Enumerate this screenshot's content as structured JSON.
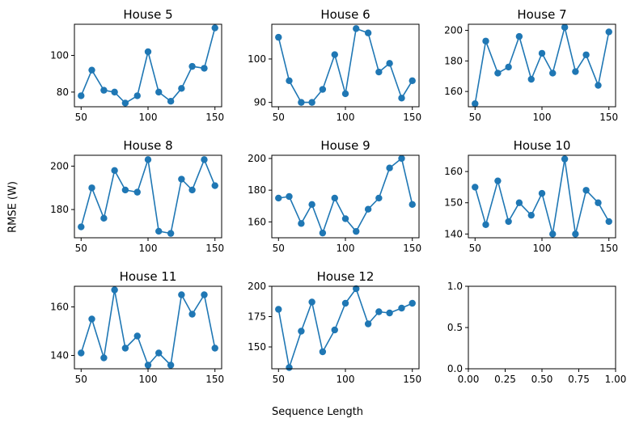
{
  "figure": {
    "xlabel": "Sequence Length",
    "ylabel": "RMSE (W)",
    "line_color": "#1f77b4"
  },
  "chart_data": [
    {
      "type": "line",
      "title": "House 5",
      "x": [
        50,
        58,
        67,
        75,
        83,
        92,
        100,
        108,
        117,
        125,
        133,
        142,
        150
      ],
      "series": [
        {
          "values": [
            78,
            92,
            81,
            80,
            74,
            78,
            102,
            80,
            75,
            82,
            94,
            93,
            115
          ]
        }
      ],
      "xlim": [
        45,
        155
      ],
      "ylim": [
        72,
        117
      ],
      "xticks": [
        50,
        100,
        150
      ],
      "yticks": [
        80,
        100
      ]
    },
    {
      "type": "line",
      "title": "House 6",
      "x": [
        50,
        58,
        67,
        75,
        83,
        92,
        100,
        108,
        117,
        125,
        133,
        142,
        150
      ],
      "series": [
        {
          "values": [
            105,
            95,
            90,
            90,
            93,
            101,
            92,
            107,
            106,
            97,
            99,
            91,
            95
          ]
        }
      ],
      "xlim": [
        45,
        155
      ],
      "ylim": [
        89,
        108
      ],
      "xticks": [
        50,
        100,
        150
      ],
      "yticks": [
        90,
        100
      ]
    },
    {
      "type": "line",
      "title": "House 7",
      "x": [
        50,
        58,
        67,
        75,
        83,
        92,
        100,
        108,
        117,
        125,
        133,
        142,
        150
      ],
      "series": [
        {
          "values": [
            152,
            193,
            172,
            176,
            196,
            168,
            185,
            172,
            202,
            173,
            184,
            164,
            199
          ]
        }
      ],
      "xlim": [
        45,
        155
      ],
      "ylim": [
        150,
        204
      ],
      "xticks": [
        50,
        100,
        150
      ],
      "yticks": [
        160,
        180,
        200
      ]
    },
    {
      "type": "line",
      "title": "House 8",
      "x": [
        50,
        58,
        67,
        75,
        83,
        92,
        100,
        108,
        117,
        125,
        133,
        142,
        150
      ],
      "series": [
        {
          "values": [
            172,
            190,
            176,
            198,
            189,
            188,
            203,
            170,
            169,
            194,
            189,
            203,
            191
          ]
        }
      ],
      "xlim": [
        45,
        155
      ],
      "ylim": [
        167,
        205
      ],
      "xticks": [
        50,
        100,
        150
      ],
      "yticks": [
        180,
        200
      ]
    },
    {
      "type": "line",
      "title": "House 9",
      "x": [
        50,
        58,
        67,
        75,
        83,
        92,
        100,
        108,
        117,
        125,
        133,
        142,
        150
      ],
      "series": [
        {
          "values": [
            175,
            176,
            159,
            171,
            153,
            175,
            162,
            154,
            168,
            175,
            194,
            200,
            171
          ]
        }
      ],
      "xlim": [
        45,
        155
      ],
      "ylim": [
        150,
        202
      ],
      "xticks": [
        50,
        100,
        150
      ],
      "yticks": [
        160,
        180,
        200
      ]
    },
    {
      "type": "line",
      "title": "House 10",
      "x": [
        50,
        58,
        67,
        75,
        83,
        92,
        100,
        108,
        117,
        125,
        133,
        142,
        150
      ],
      "series": [
        {
          "values": [
            155,
            143,
            157,
            144,
            150,
            146,
            153,
            140,
            164,
            140,
            154,
            150,
            144
          ]
        }
      ],
      "xlim": [
        45,
        155
      ],
      "ylim": [
        138.8,
        165.2
      ],
      "xticks": [
        50,
        100,
        150
      ],
      "yticks": [
        140,
        150,
        160
      ]
    },
    {
      "type": "line",
      "title": "House 11",
      "x": [
        50,
        58,
        67,
        75,
        83,
        92,
        100,
        108,
        117,
        125,
        133,
        142,
        150
      ],
      "series": [
        {
          "values": [
            141,
            155,
            139,
            167,
            143,
            148,
            136,
            141,
            136,
            165,
            157,
            165,
            143
          ]
        }
      ],
      "xlim": [
        45,
        155
      ],
      "ylim": [
        134.5,
        168.5
      ],
      "xticks": [
        50,
        100,
        150
      ],
      "yticks": [
        140,
        160
      ]
    },
    {
      "type": "line",
      "title": "House 12",
      "x": [
        50,
        58,
        67,
        75,
        83,
        92,
        100,
        108,
        117,
        125,
        133,
        142,
        150
      ],
      "series": [
        {
          "values": [
            181,
            133,
            163,
            187,
            146,
            164,
            186,
            198,
            169,
            179,
            178,
            182,
            186
          ]
        }
      ],
      "xlim": [
        45,
        155
      ],
      "ylim": [
        132,
        200
      ],
      "xticks": [
        50,
        100,
        150
      ],
      "yticks": [
        150,
        175,
        200
      ]
    },
    {
      "type": "line",
      "title": "",
      "x": [],
      "series": [],
      "xlim": [
        0,
        1
      ],
      "ylim": [
        0,
        1
      ],
      "xticks": [
        0.0,
        0.25,
        0.5,
        0.75,
        1.0
      ],
      "yticks": [
        0.0,
        0.5,
        1.0
      ],
      "xticklabels": [
        "0.00",
        "0.25",
        "0.50",
        "0.75",
        "1.00"
      ],
      "yticklabels": [
        "0.0",
        "0.5",
        "1.0"
      ]
    }
  ]
}
